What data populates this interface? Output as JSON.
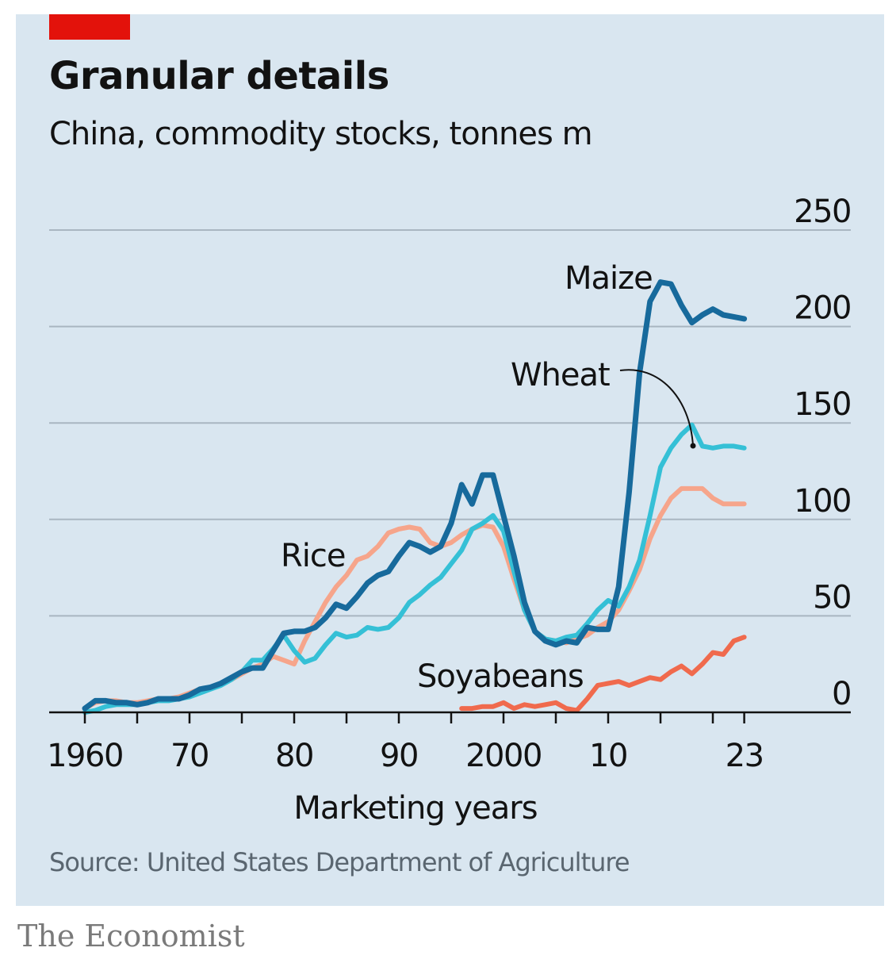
{
  "header": {
    "title": "Granular details",
    "subtitle": "China, commodity stocks, tonnes m"
  },
  "footer": {
    "source": "Source: United States Department of Agriculture",
    "brand": "The Economist"
  },
  "colors": {
    "background": "#d9e6f0",
    "accent": "#e3120b",
    "maize": "#176a9c",
    "wheat": "#35c0d6",
    "rice": "#f6a58b",
    "soyabeans": "#f06a4d"
  },
  "chart_data": {
    "type": "line",
    "title": "Granular details",
    "subtitle": "China, commodity stocks, tonnes m",
    "xlabel": "Marketing years",
    "ylabel": "",
    "xlim": [
      1960,
      2023
    ],
    "ylim": [
      0,
      250
    ],
    "grid": true,
    "y_axis_side": "right",
    "y_ticks": [
      0,
      50,
      100,
      150,
      200,
      250
    ],
    "y_tick_labels": [
      "0",
      "50",
      "100",
      "150",
      "200",
      "250"
    ],
    "x_ticks": [
      1960,
      1970,
      1980,
      1990,
      2000,
      2010,
      2023
    ],
    "x_tick_labels": [
      "1960",
      "70",
      "80",
      "90",
      "2000",
      "10",
      "23"
    ],
    "series": [
      {
        "name": "Rice",
        "color": "#f6a58b",
        "x_start": 1960,
        "values": [
          2,
          5,
          6,
          6,
          5,
          5,
          6,
          7,
          7,
          8,
          10,
          12,
          13,
          15,
          17,
          20,
          23,
          25,
          29,
          27,
          25,
          37,
          47,
          57,
          65,
          71,
          79,
          81,
          86,
          93,
          95,
          96,
          95,
          88,
          86,
          88,
          92,
          95,
          97,
          96,
          86,
          69,
          53,
          42,
          38,
          37,
          36,
          38,
          40,
          44,
          47,
          53,
          63,
          74,
          90,
          102,
          111,
          116,
          116,
          116,
          111,
          108,
          108,
          108
        ]
      },
      {
        "name": "Wheat",
        "color": "#35c0d6",
        "x_start": 1960,
        "values": [
          0,
          1,
          3,
          4,
          4,
          4,
          5,
          6,
          6,
          7,
          8,
          10,
          12,
          14,
          17,
          21,
          27,
          27,
          33,
          40,
          32,
          26,
          28,
          35,
          41,
          39,
          40,
          44,
          43,
          44,
          49,
          57,
          61,
          66,
          70,
          77,
          84,
          95,
          98,
          102,
          94,
          73,
          53,
          42,
          38,
          37,
          39,
          40,
          46,
          53,
          58,
          55,
          65,
          79,
          102,
          127,
          137,
          144,
          149,
          138,
          137,
          138,
          138,
          137
        ]
      },
      {
        "name": "Maize",
        "color": "#176a9c",
        "x_start": 1960,
        "values": [
          2,
          6,
          6,
          5,
          5,
          4,
          5,
          7,
          7,
          7,
          9,
          12,
          13,
          15,
          18,
          21,
          23,
          23,
          32,
          41,
          42,
          42,
          44,
          49,
          56,
          54,
          60,
          67,
          71,
          73,
          81,
          88,
          86,
          83,
          86,
          98,
          118,
          108,
          123,
          123,
          102,
          81,
          57,
          42,
          37,
          35,
          37,
          36,
          44,
          43,
          43,
          65,
          114,
          176,
          213,
          223,
          222,
          211,
          202,
          206,
          209,
          206,
          205,
          204
        ]
      },
      {
        "name": "Soyabeans",
        "color": "#f06a4d",
        "x_start": 1996,
        "values": [
          2,
          2,
          3,
          3,
          5,
          2,
          4,
          3,
          4,
          5,
          2,
          1,
          7,
          14,
          15,
          16,
          14,
          16,
          18,
          17,
          21,
          24,
          20,
          25,
          31,
          30,
          37,
          39
        ]
      }
    ]
  }
}
